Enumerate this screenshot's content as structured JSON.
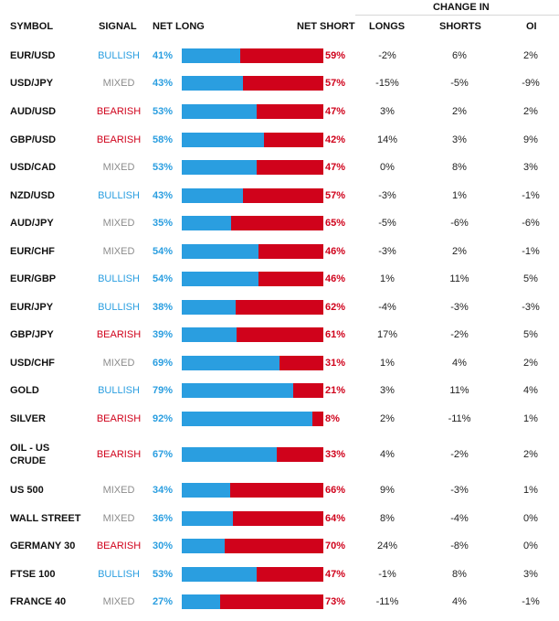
{
  "header": {
    "symbol": "SYMBOL",
    "signal": "SIGNAL",
    "net_long": "NET LONG",
    "net_short": "NET SHORT",
    "change_in": "CHANGE IN",
    "longs": "LONGS",
    "shorts": "SHORTS",
    "oi": "OI"
  },
  "colors": {
    "long": "#2a9ee0",
    "short": "#d0021b",
    "mixed": "#8c8c8c"
  },
  "rows": [
    {
      "symbol": "EUR/USD",
      "signal": "BULLISH",
      "net_long": "41%",
      "net_short": "59%",
      "long_pct": 41,
      "longs": "-2%",
      "shorts": "6%",
      "oi": "2%"
    },
    {
      "symbol": "USD/JPY",
      "signal": "MIXED",
      "net_long": "43%",
      "net_short": "57%",
      "long_pct": 43,
      "longs": "-15%",
      "shorts": "-5%",
      "oi": "-9%"
    },
    {
      "symbol": "AUD/USD",
      "signal": "BEARISH",
      "net_long": "53%",
      "net_short": "47%",
      "long_pct": 53,
      "longs": "3%",
      "shorts": "2%",
      "oi": "2%"
    },
    {
      "symbol": "GBP/USD",
      "signal": "BEARISH",
      "net_long": "58%",
      "net_short": "42%",
      "long_pct": 58,
      "longs": "14%",
      "shorts": "3%",
      "oi": "9%"
    },
    {
      "symbol": "USD/CAD",
      "signal": "MIXED",
      "net_long": "53%",
      "net_short": "47%",
      "long_pct": 53,
      "longs": "0%",
      "shorts": "8%",
      "oi": "3%"
    },
    {
      "symbol": "NZD/USD",
      "signal": "BULLISH",
      "net_long": "43%",
      "net_short": "57%",
      "long_pct": 43,
      "longs": "-3%",
      "shorts": "1%",
      "oi": "-1%"
    },
    {
      "symbol": "AUD/JPY",
      "signal": "MIXED",
      "net_long": "35%",
      "net_short": "65%",
      "long_pct": 35,
      "longs": "-5%",
      "shorts": "-6%",
      "oi": "-6%"
    },
    {
      "symbol": "EUR/CHF",
      "signal": "MIXED",
      "net_long": "54%",
      "net_short": "46%",
      "long_pct": 54,
      "longs": "-3%",
      "shorts": "2%",
      "oi": "-1%"
    },
    {
      "symbol": "EUR/GBP",
      "signal": "BULLISH",
      "net_long": "54%",
      "net_short": "46%",
      "long_pct": 54,
      "longs": "1%",
      "shorts": "11%",
      "oi": "5%"
    },
    {
      "symbol": "EUR/JPY",
      "signal": "BULLISH",
      "net_long": "38%",
      "net_short": "62%",
      "long_pct": 38,
      "longs": "-4%",
      "shorts": "-3%",
      "oi": "-3%"
    },
    {
      "symbol": "GBP/JPY",
      "signal": "BEARISH",
      "net_long": "39%",
      "net_short": "61%",
      "long_pct": 39,
      "longs": "17%",
      "shorts": "-2%",
      "oi": "5%"
    },
    {
      "symbol": "USD/CHF",
      "signal": "MIXED",
      "net_long": "69%",
      "net_short": "31%",
      "long_pct": 69,
      "longs": "1%",
      "shorts": "4%",
      "oi": "2%"
    },
    {
      "symbol": "GOLD",
      "signal": "BULLISH",
      "net_long": "79%",
      "net_short": "21%",
      "long_pct": 79,
      "longs": "3%",
      "shorts": "11%",
      "oi": "4%"
    },
    {
      "symbol": "SILVER",
      "signal": "BEARISH",
      "net_long": "92%",
      "net_short": "8%",
      "long_pct": 92,
      "longs": "2%",
      "shorts": "-11%",
      "oi": "1%"
    },
    {
      "symbol": "OIL - US CRUDE",
      "signal": "BEARISH",
      "net_long": "67%",
      "net_short": "33%",
      "long_pct": 67,
      "longs": "4%",
      "shorts": "-2%",
      "oi": "2%"
    },
    {
      "symbol": "US 500",
      "signal": "MIXED",
      "net_long": "34%",
      "net_short": "66%",
      "long_pct": 34,
      "longs": "9%",
      "shorts": "-3%",
      "oi": "1%"
    },
    {
      "symbol": "WALL STREET",
      "signal": "MIXED",
      "net_long": "36%",
      "net_short": "64%",
      "long_pct": 36,
      "longs": "8%",
      "shorts": "-4%",
      "oi": "0%"
    },
    {
      "symbol": "GERMANY 30",
      "signal": "BEARISH",
      "net_long": "30%",
      "net_short": "70%",
      "long_pct": 30,
      "longs": "24%",
      "shorts": "-8%",
      "oi": "0%"
    },
    {
      "symbol": "FTSE 100",
      "signal": "BULLISH",
      "net_long": "53%",
      "net_short": "47%",
      "long_pct": 53,
      "longs": "-1%",
      "shorts": "8%",
      "oi": "3%"
    },
    {
      "symbol": "FRANCE 40",
      "signal": "MIXED",
      "net_long": "27%",
      "net_short": "73%",
      "long_pct": 27,
      "longs": "-11%",
      "shorts": "4%",
      "oi": "-1%"
    }
  ]
}
